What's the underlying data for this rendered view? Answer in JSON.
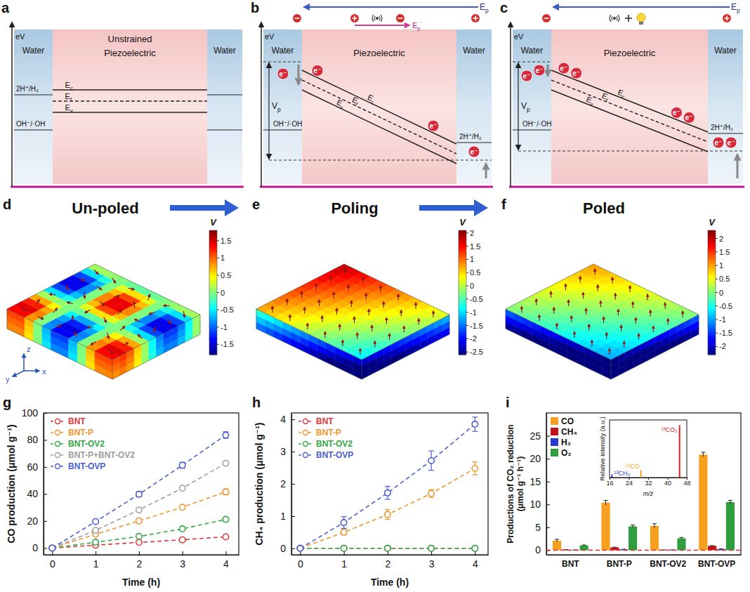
{
  "band_diagrams": [
    {
      "panel_label": "a",
      "energy_axis": "eV",
      "media": [
        "Water",
        "Piezoelectric",
        "Water"
      ],
      "state": "Unstrained",
      "bands": [
        {
          "text": "E",
          "sub": "c"
        },
        {
          "text": "E",
          "sub": "f"
        },
        {
          "text": "E",
          "sub": "v"
        }
      ],
      "left_levels": [
        "2H⁺/H₂",
        "OH⁻/·OH"
      ]
    },
    {
      "panel_label": "b",
      "energy_axis": "eV",
      "media": [
        "Water",
        "Piezoelectric",
        "Water"
      ],
      "field": {
        "text": "E",
        "sub": "p"
      },
      "internal_field": {
        "text": "E",
        "sub": "p",
        "sup": "'"
      },
      "potential": {
        "text": "V",
        "sub": "p"
      },
      "bands": [
        {
          "text": "E",
          "sub": "c"
        },
        {
          "text": "E",
          "sub": "f"
        },
        {
          "text": "E",
          "sub": "v"
        }
      ],
      "left_levels": [
        "OH⁻/·OH"
      ],
      "right_levels": [
        "2H⁺/H₂"
      ],
      "electron": "e⁻"
    },
    {
      "panel_label": "c",
      "energy_axis": "eV",
      "media": [
        "Water",
        "Piezoelectric",
        "Water"
      ],
      "field": {
        "text": "E",
        "sub": "p"
      },
      "potential": {
        "text": "V",
        "sub": "p"
      },
      "bands": [
        {
          "text": "E",
          "sub": "c"
        },
        {
          "text": "E",
          "sub": "f"
        },
        {
          "text": "E",
          "sub": "v"
        }
      ],
      "left_levels": [
        "OH⁻/·OH"
      ],
      "right_levels": [
        "2H⁺/H₂"
      ],
      "electron": "e⁻"
    }
  ],
  "field_maps": [
    {
      "panel_label": "d",
      "title": "Un-poled",
      "axes": [
        "x",
        "y",
        "z"
      ],
      "colorbar": {
        "label": "V",
        "range": [
          -1.8,
          1.8
        ],
        "ticks": [
          1.5,
          1,
          0.5,
          0,
          -0.5,
          -1,
          -1.5
        ]
      }
    },
    {
      "panel_label": "e",
      "title": "Poling",
      "colorbar": {
        "label": "V",
        "range": [
          -2.6,
          2.1
        ],
        "ticks": [
          2,
          1.5,
          1,
          0.5,
          0,
          -0.5,
          -1,
          -1.5,
          -2,
          -2.5
        ]
      }
    },
    {
      "panel_label": "f",
      "title": "Poled",
      "colorbar": {
        "label": "V",
        "range": [
          -2.3,
          2.3
        ],
        "ticks": [
          2,
          1.5,
          1,
          0.5,
          0,
          -0.5,
          -1,
          -1.5,
          -2
        ]
      }
    }
  ],
  "chart_data": [
    {
      "panel_label": "g",
      "type": "line",
      "x_label": "Time (h)",
      "y_label": "CO production (μmol g⁻¹)",
      "x": [
        0,
        1,
        2,
        3,
        4
      ],
      "xlim": [
        -0.2,
        4.3
      ],
      "xticks": [
        0,
        1,
        2,
        3,
        4
      ],
      "ylim": [
        -5,
        100
      ],
      "yticks": [
        0,
        20,
        40,
        60,
        80,
        100
      ],
      "legend": "upper left",
      "marker": "circle",
      "line_style": "dashed",
      "series": [
        {
          "name": "BNT",
          "color": "#d93a3a",
          "values": [
            0,
            2.1,
            4.2,
            6.1,
            8.3
          ],
          "errors": [
            0,
            0.4,
            0.5,
            0.5,
            0.6
          ]
        },
        {
          "name": "BNT-P",
          "color": "#f0962e",
          "values": [
            0,
            10.2,
            20.1,
            30.2,
            41.6
          ],
          "errors": [
            0,
            1,
            1.5,
            1.5,
            2.2
          ]
        },
        {
          "name": "BNT-OV2",
          "color": "#34a844",
          "values": [
            0,
            4.3,
            8.6,
            14.2,
            21.2
          ],
          "errors": [
            0,
            0.6,
            0.8,
            1,
            1.4
          ]
        },
        {
          "name": "BNT-P+BNT-OV2",
          "color": "#9e9e9e",
          "values": [
            0,
            13.1,
            28.2,
            44.3,
            62.7
          ],
          "errors": [
            0,
            0.5,
            0.6,
            0.6,
            0.8
          ]
        },
        {
          "name": "BNT-OVP",
          "color": "#4b5fd1",
          "values": [
            0,
            19.6,
            39.8,
            61.3,
            83.6
          ],
          "errors": [
            0,
            1.3,
            2,
            2.2,
            2.4
          ]
        }
      ]
    },
    {
      "panel_label": "h",
      "type": "line",
      "x_label": "Time (h)",
      "y_label": "CH₄ production (μmol g⁻¹)",
      "x": [
        0,
        1,
        2,
        3,
        4
      ],
      "xlim": [
        -0.2,
        4.3
      ],
      "xticks": [
        0,
        1,
        2,
        3,
        4
      ],
      "ylim": [
        -0.2,
        4.2
      ],
      "yticks": [
        0,
        1,
        2,
        3,
        4
      ],
      "legend": "upper left",
      "marker": "circle",
      "line_style": "dashed",
      "series": [
        {
          "name": "BNT",
          "color": "#d93a3a",
          "values": [
            0,
            0,
            0,
            0,
            0
          ],
          "errors": [
            0,
            0,
            0,
            0,
            0
          ]
        },
        {
          "name": "BNT-P",
          "color": "#f0962e",
          "values": [
            0,
            0.5,
            1.05,
            1.7,
            2.48
          ],
          "errors": [
            0,
            0.08,
            0.15,
            0.12,
            0.2
          ]
        },
        {
          "name": "BNT-OV2",
          "color": "#34a844",
          "values": [
            0,
            0,
            0,
            0,
            0
          ],
          "errors": [
            0,
            0,
            0,
            0,
            0
          ]
        },
        {
          "name": "BNT-OVP",
          "color": "#4b5fd1",
          "values": [
            0,
            0.8,
            1.72,
            2.72,
            3.85
          ],
          "errors": [
            0,
            0.18,
            0.2,
            0.3,
            0.22
          ]
        }
      ]
    },
    {
      "panel_label": "i",
      "type": "bar",
      "y_label": "Productions of CO₂ reduction (μmol g⁻¹ h⁻¹)",
      "categories": [
        "BNT",
        "BNT-P",
        "BNT-OV2",
        "BNT-OVP"
      ],
      "ylim": [
        -1,
        30
      ],
      "yticks": [
        0,
        5,
        10,
        15,
        20,
        25
      ],
      "legend": "upper left",
      "reference_line": {
        "value": 0,
        "color": "#e03030",
        "line_style": "dashed"
      },
      "series": [
        {
          "name": "CO",
          "color": "#f5a020",
          "values": [
            2.1,
            10.4,
            5.3,
            20.9
          ],
          "errors": [
            0.3,
            0.5,
            0.5,
            0.5
          ]
        },
        {
          "name": "CH₄",
          "color": "#c0141c",
          "values": [
            0.1,
            0.62,
            0.05,
            0.96
          ],
          "errors": [
            0.02,
            0.05,
            0.02,
            0.05
          ]
        },
        {
          "name": "H₂",
          "color": "#2b3bd0",
          "values": [
            0.06,
            0.18,
            0.08,
            0.25
          ],
          "errors": [
            0.02,
            0.04,
            0.02,
            0.04
          ]
        },
        {
          "name": "O₂",
          "color": "#2e9e3e",
          "values": [
            1.05,
            5.2,
            2.6,
            10.5
          ],
          "errors": [
            0.1,
            0.3,
            0.2,
            0.4
          ]
        }
      ],
      "inset": {
        "type": "stem",
        "x_label": "m/z",
        "y_label": "Relative intensity (a.u.)",
        "x": [
          17,
          29,
          45
        ],
        "values": [
          0.06,
          0.14,
          1
        ],
        "colors": [
          "#2b3bd0",
          "#f5a020",
          "#e02020"
        ],
        "annotations": [
          "¹³CH₄",
          "¹³CO",
          "¹³CO₂"
        ],
        "xlim": [
          16,
          48
        ],
        "xticks": [
          16,
          24,
          32,
          40,
          48
        ],
        "ylim": [
          0,
          1.1
        ],
        "tick_labels": "x"
      }
    }
  ]
}
